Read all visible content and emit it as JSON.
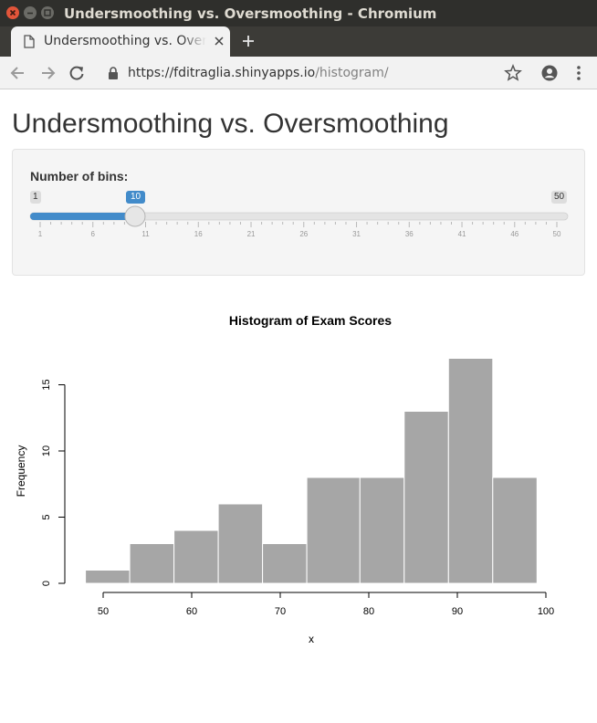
{
  "window": {
    "title": "Undersmoothing vs. Oversmoothing - Chromium"
  },
  "tab": {
    "title": "Undersmoothing vs. Oversmoothing"
  },
  "address_bar": {
    "url_host": "https://fditraglia.shinyapps.io",
    "url_path": "/histogram/"
  },
  "page": {
    "title": "Undersmoothing vs. Oversmoothing"
  },
  "slider": {
    "label": "Number of bins:",
    "min": 1,
    "max": 50,
    "value": 10,
    "min_label": "1",
    "max_label": "50",
    "value_label": "10",
    "tick_labels": [
      "1",
      "6",
      "11",
      "16",
      "21",
      "26",
      "31",
      "36",
      "41",
      "46",
      "50"
    ],
    "accent_color": "#428bca"
  },
  "chart_data": {
    "type": "bar",
    "title": "Histogram of Exam Scores",
    "xlabel": "x",
    "ylabel": "Frequency",
    "bin_edges": [
      48,
      53,
      58,
      63,
      68,
      73,
      79,
      84,
      89,
      94,
      99
    ],
    "values": [
      1,
      3,
      4,
      6,
      3,
      8,
      8,
      13,
      17,
      8
    ],
    "xlim": [
      50,
      100
    ],
    "ylim": [
      0,
      17
    ],
    "x_ticks": [
      "50",
      "60",
      "70",
      "80",
      "90",
      "100"
    ],
    "y_ticks": [
      "0",
      "5",
      "10",
      "15"
    ],
    "bar_color": "#a6a6a6",
    "grid": false
  }
}
